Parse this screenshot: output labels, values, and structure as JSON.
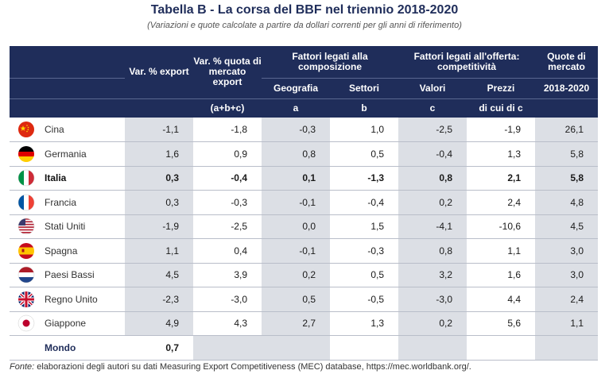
{
  "title": "Tabella B - La corsa del BBF nel triennio 2018-2020",
  "subtitle": "(Variazioni e quote calcolate a partire da dollari correnti per gli anni di riferimento)",
  "headers": {
    "var_export": "Var. % export",
    "var_quota": "Var. % quota di mercato export",
    "fattori_composizione": "Fattori legati alla composizione",
    "fattori_offerta": "Fattori legati all'offerta: competitività",
    "quote_mercato": "Quote di mercato",
    "geografia": "Geografia",
    "settori": "Settori",
    "valori": "Valori",
    "prezzi": "Prezzi",
    "anni": "2018-2020",
    "sub_abc": "(a+b+c)",
    "sub_a": "a",
    "sub_b": "b",
    "sub_c": "c",
    "sub_dicuidic": "di cui di c"
  },
  "rows": [
    {
      "country": "Cina",
      "flag": "china-flag",
      "v": [
        "-1,1",
        "-1,8",
        "-0,3",
        "1,0",
        "-2,5",
        "-1,9",
        "26,1"
      ]
    },
    {
      "country": "Germania",
      "flag": "germany-flag",
      "v": [
        "1,6",
        "0,9",
        "0,8",
        "0,5",
        "-0,4",
        "1,3",
        "5,8"
      ]
    },
    {
      "country": "Italia",
      "flag": "italy-flag",
      "v": [
        "0,3",
        "-0,4",
        "0,1",
        "-1,3",
        "0,8",
        "2,1",
        "5,8"
      ]
    },
    {
      "country": "Francia",
      "flag": "france-flag",
      "v": [
        "0,3",
        "-0,3",
        "-0,1",
        "-0,4",
        "0,2",
        "2,4",
        "4,8"
      ]
    },
    {
      "country": "Stati Uniti",
      "flag": "usa-flag",
      "v": [
        "-1,9",
        "-2,5",
        "0,0",
        "1,5",
        "-4,1",
        "-10,6",
        "4,5"
      ]
    },
    {
      "country": "Spagna",
      "flag": "spain-flag",
      "v": [
        "1,1",
        "0,4",
        "-0,1",
        "-0,3",
        "0,8",
        "1,1",
        "3,0"
      ]
    },
    {
      "country": "Paesi Bassi",
      "flag": "netherlands-flag",
      "v": [
        "4,5",
        "3,9",
        "0,2",
        "0,5",
        "3,2",
        "1,6",
        "3,0"
      ]
    },
    {
      "country": "Regno Unito",
      "flag": "uk-flag",
      "v": [
        "-2,3",
        "-3,0",
        "0,5",
        "-0,5",
        "-3,0",
        "4,4",
        "2,4"
      ]
    },
    {
      "country": "Giappone",
      "flag": "japan-flag",
      "v": [
        "4,9",
        "4,3",
        "2,7",
        "1,3",
        "0,2",
        "5,6",
        "1,1"
      ]
    }
  ],
  "world": {
    "label": "Mondo",
    "value": "0,7"
  },
  "footnote": {
    "lead": "Fonte:",
    "text": " elaborazioni degli autori su dati Measuring Export Competitiveness (MEC) database, https://mec.worldbank.org/."
  }
}
